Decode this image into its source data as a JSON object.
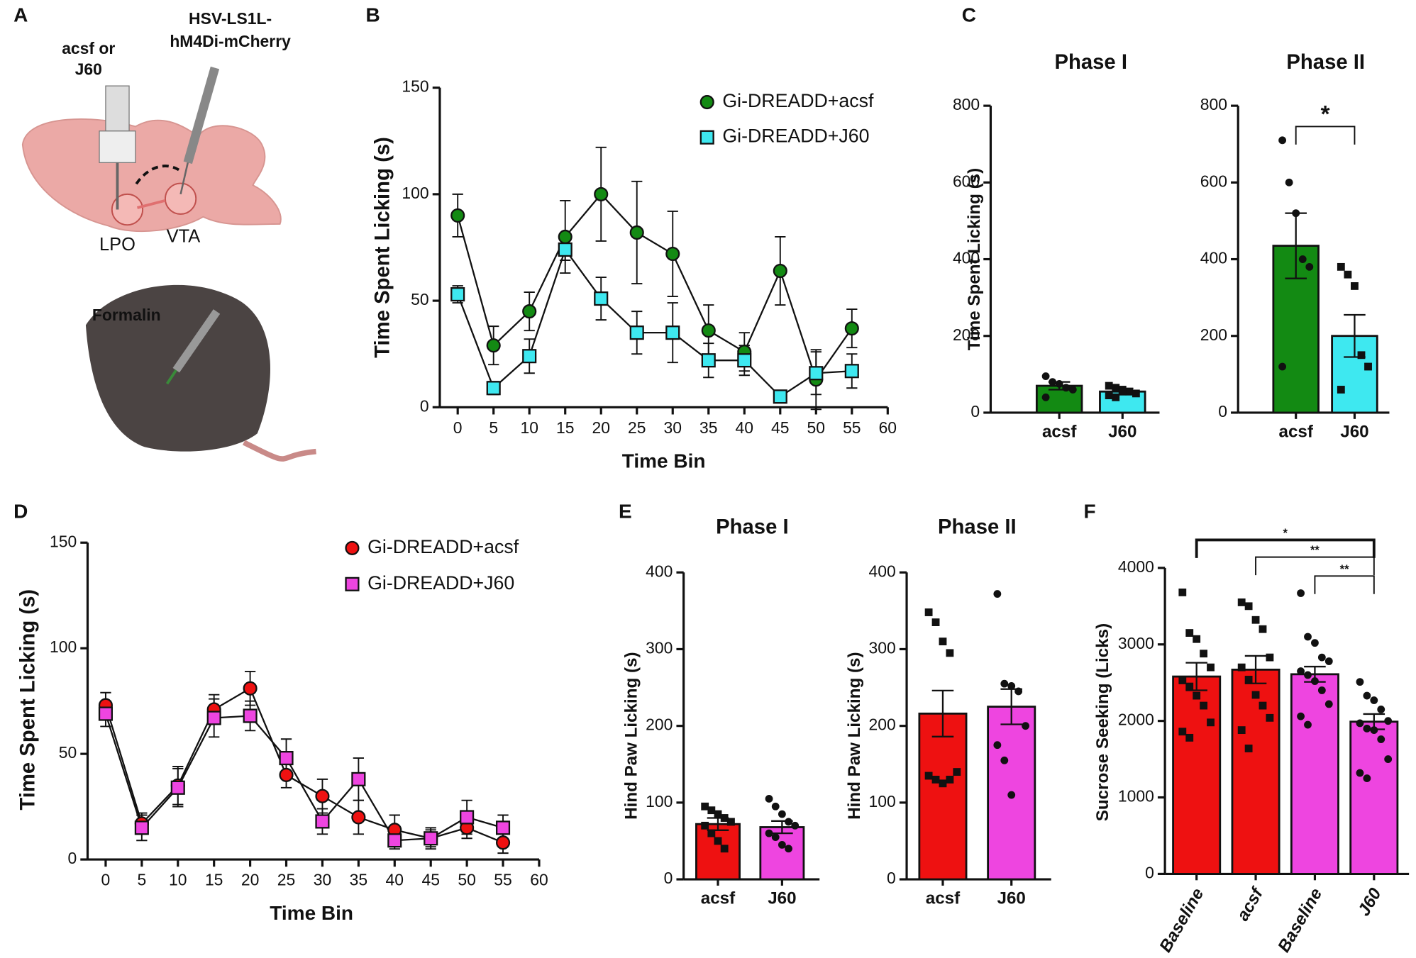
{
  "panel_labels": [
    "A",
    "B",
    "C",
    "D",
    "E",
    "F"
  ],
  "illustration": {
    "injection_label": [
      "acsf or",
      "J60"
    ],
    "virus_label": [
      "HSV-LS1L-",
      "hM4Di-mCherry"
    ],
    "regions": [
      "LPO",
      "VTA"
    ],
    "formalin_label": "Formalin"
  },
  "chart_data": [
    {
      "type": "line",
      "x_label": "Time Bin",
      "y_label": "Time  Spent Licking (s)",
      "x": [
        0,
        5,
        10,
        15,
        20,
        25,
        30,
        35,
        40,
        45,
        50,
        55
      ],
      "series": [
        {
          "name": "Gi-DREADD+acsf",
          "color": "#138a13",
          "marker": "circle",
          "values": [
            90,
            29,
            45,
            80,
            100,
            82,
            72,
            36,
            26,
            64,
            13,
            37
          ],
          "errors": [
            10,
            9,
            9,
            17,
            22,
            24,
            20,
            12,
            9,
            16,
            14,
            9
          ]
        },
        {
          "name": "Gi-DREADD+J60",
          "color": "#3ee8f0",
          "marker": "square",
          "values": [
            53,
            9,
            24,
            74,
            51,
            35,
            35,
            22,
            22,
            5,
            16,
            17
          ],
          "errors": [
            4,
            3,
            8,
            5,
            10,
            10,
            14,
            8,
            7,
            1,
            10,
            8
          ]
        }
      ],
      "xlim": [
        -2.5,
        60
      ],
      "xticks": [
        0,
        5,
        10,
        15,
        20,
        25,
        30,
        35,
        40,
        45,
        50,
        55,
        60
      ],
      "ylim": [
        0,
        150
      ],
      "yticks": [
        0,
        50,
        100,
        150
      ],
      "legend": "upper right"
    },
    {
      "type": "bar",
      "title": "Phase I",
      "y_label": "Time Spent  Licking (s)",
      "categories": [
        "acsf",
        "J60"
      ],
      "values": [
        70,
        55
      ],
      "errors": [
        10,
        8
      ],
      "colors": [
        "#138a13",
        "#3ee8f0"
      ],
      "point_markers": [
        "circle",
        "square"
      ],
      "points": [
        [
          95,
          80,
          75,
          65,
          60,
          40
        ],
        [
          70,
          65,
          60,
          55,
          50,
          45,
          40,
          55
        ]
      ],
      "ylim": [
        0,
        800
      ],
      "yticks": [
        0,
        200,
        400,
        600,
        800
      ]
    },
    {
      "type": "bar",
      "title": "Phase II",
      "categories": [
        "acsf",
        "J60"
      ],
      "values": [
        435,
        200
      ],
      "errors": [
        85,
        55
      ],
      "colors": [
        "#138a13",
        "#3ee8f0"
      ],
      "point_markers": [
        "circle",
        "square"
      ],
      "points": [
        [
          710,
          600,
          520,
          400,
          380,
          120
        ],
        [
          380,
          360,
          330,
          150,
          120,
          60
        ]
      ],
      "comparisons": [
        {
          "groups": [
            0,
            1
          ],
          "label": "*"
        }
      ],
      "ylim": [
        0,
        800
      ],
      "yticks": [
        0,
        200,
        400,
        600,
        800
      ]
    },
    {
      "type": "line",
      "x_label": "Time Bin",
      "y_label": "Time  Spent Licking (s)",
      "x": [
        0,
        5,
        10,
        15,
        20,
        25,
        30,
        35,
        40,
        45,
        50,
        55
      ],
      "series": [
        {
          "name": "Gi-DREADD+acsf",
          "color": "#ee1111",
          "marker": "circle",
          "values": [
            73,
            17,
            35,
            71,
            81,
            40,
            30,
            20,
            14,
            10,
            15,
            8
          ],
          "errors": [
            6,
            5,
            9,
            7,
            8,
            6,
            8,
            8,
            7,
            5,
            5,
            5
          ]
        },
        {
          "name": "Gi-DREADD+J60",
          "color": "#ee45e0",
          "marker": "square",
          "values": [
            69,
            15,
            34,
            67,
            68,
            48,
            18,
            38,
            9,
            10,
            20,
            15
          ],
          "errors": [
            6,
            6,
            9,
            9,
            7,
            9,
            6,
            10,
            4,
            4,
            8,
            6
          ]
        }
      ],
      "xlim": [
        -2.5,
        60
      ],
      "xticks": [
        0,
        5,
        10,
        15,
        20,
        25,
        30,
        35,
        40,
        45,
        50,
        55,
        60
      ],
      "ylim": [
        0,
        150
      ],
      "yticks": [
        0,
        50,
        100,
        150
      ],
      "legend": "upper right"
    },
    {
      "type": "bar",
      "title": "Phase I",
      "y_label": "Hind  Paw Licking  (s)",
      "categories": [
        "acsf",
        "J60"
      ],
      "values": [
        72,
        68
      ],
      "errors": [
        8,
        8
      ],
      "colors": [
        "#ee1111",
        "#ee45e0"
      ],
      "point_markers": [
        "square",
        "circle"
      ],
      "points": [
        [
          95,
          90,
          85,
          80,
          75,
          70,
          60,
          50,
          40,
          75
        ],
        [
          105,
          95,
          85,
          75,
          70,
          60,
          55,
          45,
          40
        ]
      ],
      "ylim": [
        0,
        400
      ],
      "yticks": [
        0,
        100,
        200,
        300,
        400
      ]
    },
    {
      "type": "bar",
      "title": "Phase II",
      "y_label": "Hind  Paw Licking  (s)",
      "categories": [
        "acsf",
        "J60"
      ],
      "values": [
        216,
        225
      ],
      "errors": [
        30,
        23
      ],
      "colors": [
        "#ee1111",
        "#ee45e0"
      ],
      "point_markers": [
        "square",
        "circle"
      ],
      "points": [
        [
          348,
          335,
          310,
          295,
          140,
          135,
          130,
          125,
          130
        ],
        [
          372,
          255,
          252,
          245,
          200,
          175,
          155,
          110
        ]
      ],
      "ylim": [
        0,
        400
      ],
      "yticks": [
        0,
        100,
        200,
        300,
        400
      ]
    },
    {
      "type": "bar",
      "y_label": "Sucrose  Seeking (Licks)",
      "categories": [
        "Baseline",
        "acsf",
        "Baseline",
        "J60"
      ],
      "values": [
        2580,
        2670,
        2610,
        1990
      ],
      "errors": [
        180,
        180,
        100,
        100
      ],
      "colors": [
        "#ee1111",
        "#ee1111",
        "#ee45e0",
        "#ee45e0"
      ],
      "point_markers": [
        "square",
        "square",
        "circle",
        "circle"
      ],
      "points": [
        [
          3680,
          3150,
          3070,
          2880,
          2700,
          2530,
          2450,
          2330,
          2200,
          1980,
          1860,
          1780
        ],
        [
          3550,
          3500,
          3320,
          3200,
          2830,
          2700,
          2540,
          2340,
          2200,
          2040,
          1880,
          1640
        ],
        [
          3670,
          3100,
          3020,
          2830,
          2780,
          2650,
          2600,
          2520,
          2400,
          2220,
          2060,
          1950
        ],
        [
          2510,
          2330,
          2270,
          2150,
          2000,
          1970,
          1900,
          1880,
          1760,
          1500,
          1320,
          1250
        ]
      ],
      "comparisons": [
        {
          "groups": [
            0,
            3
          ],
          "label": "*"
        },
        {
          "groups": [
            1,
            3
          ],
          "label": "**"
        },
        {
          "groups": [
            2,
            3
          ],
          "label": "**"
        }
      ],
      "ylim": [
        0,
        4000
      ],
      "yticks": [
        0,
        1000,
        2000,
        3000,
        4000
      ]
    }
  ]
}
